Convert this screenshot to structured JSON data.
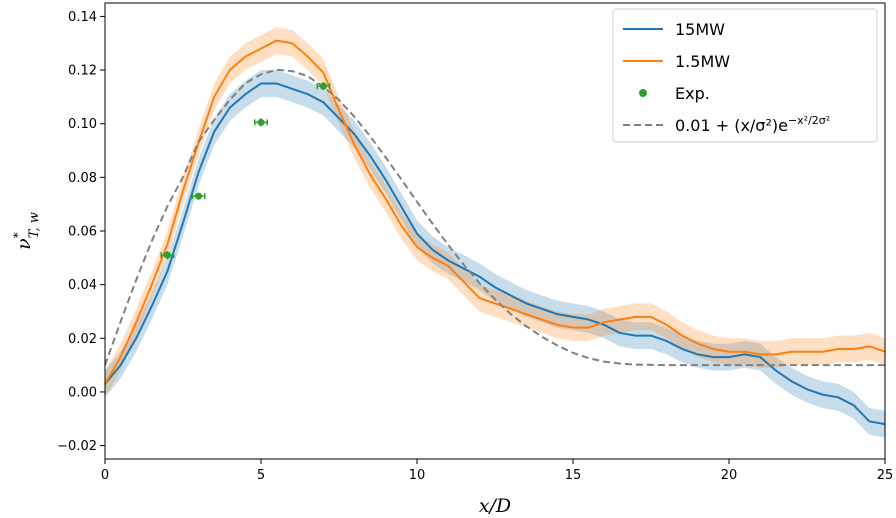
{
  "chart_data": {
    "type": "line",
    "xlabel": "x/D",
    "ylabel": "ν*T, w",
    "xlim": [
      0,
      25
    ],
    "ylim": [
      -0.025,
      0.145
    ],
    "xticks": [
      0,
      5,
      10,
      15,
      20,
      25
    ],
    "xtick_labels": [
      "0",
      "5",
      "10",
      "15",
      "20",
      "25"
    ],
    "yticks": [
      -0.02,
      0.0,
      0.02,
      0.04,
      0.06,
      0.08,
      0.1,
      0.12,
      0.14
    ],
    "ytick_labels": [
      "−0.02",
      "0.00",
      "0.02",
      "0.04",
      "0.06",
      "0.08",
      "0.10",
      "0.12",
      "0.14"
    ],
    "grid": false,
    "legend_position": "top-right",
    "series": [
      {
        "name": "15MW",
        "kind": "line",
        "color": "#1f77b4",
        "band_halfwidth": 0.005,
        "x": [
          0,
          0.5,
          1,
          1.5,
          2,
          2.5,
          3,
          3.5,
          4,
          4.5,
          5,
          5.5,
          6,
          6.5,
          7,
          7.5,
          8,
          8.5,
          9,
          9.5,
          10,
          10.5,
          11,
          11.5,
          12,
          12.5,
          13,
          13.5,
          14,
          14.5,
          15,
          15.5,
          16,
          16.5,
          17,
          17.5,
          18,
          18.5,
          19,
          19.5,
          20,
          20.5,
          21,
          21.5,
          22,
          22.5,
          23,
          23.5,
          24,
          24.5,
          25
        ],
        "y": [
          0.003,
          0.01,
          0.02,
          0.032,
          0.045,
          0.063,
          0.082,
          0.097,
          0.106,
          0.111,
          0.115,
          0.115,
          0.113,
          0.111,
          0.108,
          0.102,
          0.096,
          0.088,
          0.079,
          0.069,
          0.059,
          0.053,
          0.049,
          0.046,
          0.043,
          0.039,
          0.036,
          0.033,
          0.031,
          0.029,
          0.028,
          0.027,
          0.025,
          0.022,
          0.021,
          0.021,
          0.019,
          0.016,
          0.014,
          0.013,
          0.013,
          0.014,
          0.013,
          0.008,
          0.004,
          0.001,
          -0.001,
          -0.002,
          -0.005,
          -0.011,
          -0.012
        ]
      },
      {
        "name": "1.5MW",
        "kind": "line",
        "color": "#ff7f0e",
        "band_halfwidth": 0.005,
        "x": [
          0,
          0.5,
          1,
          1.5,
          2,
          2.5,
          3,
          3.5,
          4,
          4.5,
          5,
          5.5,
          6,
          6.5,
          7,
          7.5,
          8,
          8.5,
          9,
          9.5,
          10,
          10.5,
          11,
          11.5,
          12,
          12.5,
          13,
          13.5,
          14,
          14.5,
          15,
          15.5,
          16,
          16.5,
          17,
          17.5,
          18,
          18.5,
          19,
          19.5,
          20,
          20.5,
          21,
          21.5,
          22,
          22.5,
          23,
          23.5,
          24,
          24.5,
          25
        ],
        "y": [
          0.003,
          0.013,
          0.026,
          0.04,
          0.055,
          0.075,
          0.093,
          0.11,
          0.12,
          0.125,
          0.128,
          0.131,
          0.13,
          0.125,
          0.119,
          0.105,
          0.092,
          0.081,
          0.072,
          0.062,
          0.054,
          0.05,
          0.047,
          0.041,
          0.035,
          0.033,
          0.031,
          0.029,
          0.027,
          0.025,
          0.024,
          0.024,
          0.026,
          0.027,
          0.028,
          0.028,
          0.025,
          0.021,
          0.018,
          0.016,
          0.015,
          0.015,
          0.014,
          0.014,
          0.015,
          0.015,
          0.015,
          0.016,
          0.016,
          0.017,
          0.015
        ]
      },
      {
        "name": "0.01 + (x/σ²)e^{−x²/2σ²}",
        "kind": "dashed",
        "color": "#808080",
        "x": [
          0,
          0.5,
          1,
          1.5,
          2,
          2.5,
          3,
          3.5,
          4,
          4.5,
          5,
          5.5,
          6,
          6.5,
          7,
          7.5,
          8,
          8.5,
          9,
          9.5,
          10,
          10.5,
          11,
          11.5,
          12,
          12.5,
          13,
          13.5,
          14,
          14.5,
          15,
          15.5,
          16,
          16.5,
          17,
          17.5,
          18,
          18.5,
          19,
          19.5,
          20,
          20.5,
          21,
          21.5,
          22,
          22.5,
          23,
          23.5,
          24,
          24.5,
          25
        ],
        "y": [
          0.01,
          0.0262,
          0.0418,
          0.0563,
          0.0692,
          0.0801,
          0.0933,
          0.1014,
          0.1089,
          0.1151,
          0.1184,
          0.1201,
          0.1196,
          0.1177,
          0.1138,
          0.1088,
          0.1025,
          0.0953,
          0.0874,
          0.0792,
          0.0709,
          0.0627,
          0.0548,
          0.0474,
          0.0406,
          0.0345,
          0.0291,
          0.0245,
          0.0206,
          0.0173,
          0.0146,
          0.0126,
          0.0113,
          0.0106,
          0.0102,
          0.0101,
          0.01,
          0.01,
          0.01,
          0.01,
          0.01,
          0.01,
          0.01,
          0.01,
          0.01,
          0.01,
          0.01,
          0.01,
          0.01,
          0.01,
          0.01
        ]
      },
      {
        "name": "Exp.",
        "kind": "scatter",
        "color": "#2ca02c",
        "x": [
          2,
          3,
          5,
          7
        ],
        "y": [
          0.051,
          0.073,
          0.1005,
          0.114
        ],
        "xerr": [
          0.2,
          0.2,
          0.2,
          0.2
        ],
        "yerr": [
          0.0015,
          0.0012,
          0.0015,
          0.0015
        ]
      }
    ]
  }
}
